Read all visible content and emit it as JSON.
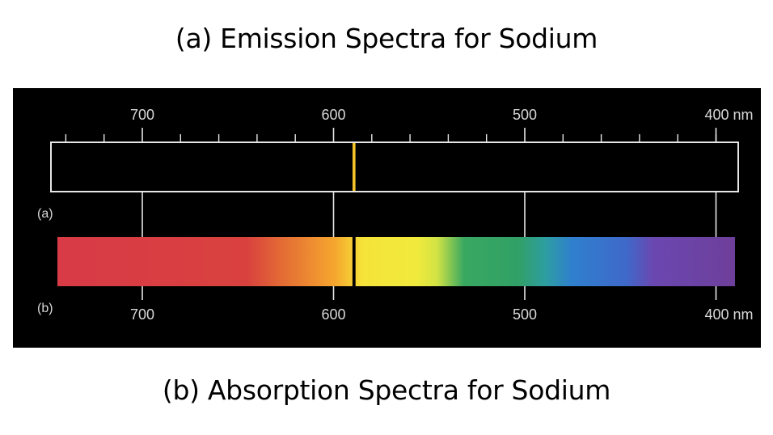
{
  "titles": {
    "emission": "(a) Emission Spectra for Sodium",
    "absorption": "(b) Absorption Spectra for Sodium"
  },
  "figure": {
    "panel_labels": {
      "a": "(a)",
      "b": "(b)"
    },
    "scale_min_nm": 400,
    "scale_max_nm": 750,
    "top_axis": {
      "tick_labels": [
        {
          "value": 700,
          "text": "700"
        },
        {
          "value": 600,
          "text": "600"
        },
        {
          "value": 500,
          "text": "500"
        },
        {
          "value": 400,
          "text": "400 nm"
        }
      ],
      "minor_ticks": [
        740,
        720,
        680,
        660,
        640,
        620,
        580,
        560,
        540,
        520,
        480,
        460,
        440,
        420,
        400
      ]
    },
    "bottom_axis": {
      "tick_labels": [
        {
          "value": 700,
          "text": "700"
        },
        {
          "value": 600,
          "text": "600"
        },
        {
          "value": 500,
          "text": "500"
        },
        {
          "value": 400,
          "text": "400 nm"
        }
      ]
    },
    "sodium_lines_nm": [
      589.0,
      589.6
    ],
    "emission_line_color": "#f4c32a",
    "absorption_line_color": "#000000",
    "spectrum_colors": [
      "#d83a46",
      "#d9413f",
      "#e36a35",
      "#f6a72e",
      "#f5e33a",
      "#f1ea3d",
      "#d3e344",
      "#38a861",
      "#31a066",
      "#2e9ea1",
      "#2f7fce",
      "#3f69c9",
      "#6a47b0",
      "#6e3f9a"
    ]
  }
}
